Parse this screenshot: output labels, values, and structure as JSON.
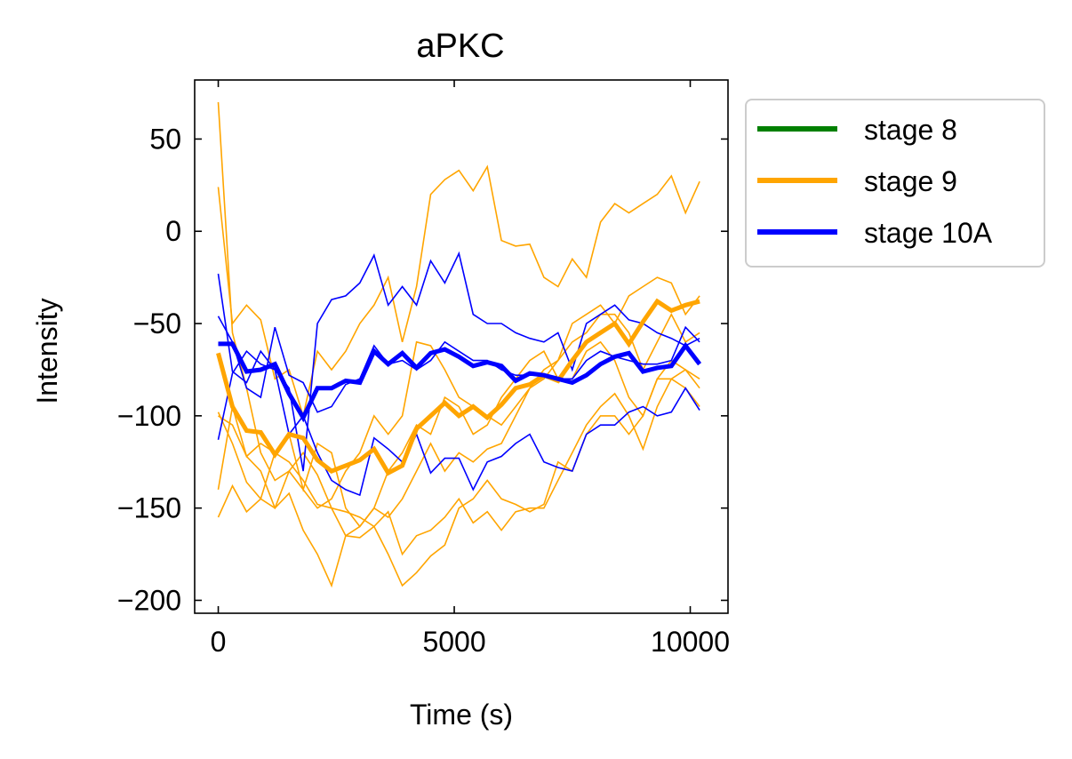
{
  "chart_data": {
    "type": "line",
    "title": "aPKC",
    "xlabel": "Time (s)",
    "ylabel": "Intensity",
    "xlim": [
      -500,
      10800
    ],
    "ylim": [
      -207,
      82
    ],
    "xticks": [
      0,
      5000,
      10000
    ],
    "xtick_labels": [
      "0",
      "5000",
      "10000"
    ],
    "yticks": [
      50,
      0,
      -50,
      -100,
      -150,
      -200
    ],
    "ytick_labels": [
      "50",
      "0",
      "−50",
      "−100",
      "−150",
      "−200"
    ],
    "grid": false,
    "legend_position": "outside-right-top",
    "legend": [
      {
        "label": "stage 8",
        "color": "#008000"
      },
      {
        "label": "stage 9",
        "color": "#FFA500"
      },
      {
        "label": "stage 10A",
        "color": "#0000FF"
      }
    ],
    "x": [
      0,
      300,
      600,
      900,
      1200,
      1500,
      1800,
      2100,
      2400,
      2700,
      3000,
      3300,
      3600,
      3900,
      4200,
      4500,
      4800,
      5100,
      5400,
      5700,
      6000,
      6300,
      6600,
      6900,
      7200,
      7500,
      7800,
      8100,
      8400,
      8700,
      9000,
      9300,
      9600,
      9900,
      10200
    ],
    "series": [
      {
        "group": "stage 9",
        "style": "individual",
        "color": "#FFA500",
        "values": [
          70,
          -55,
          -85,
          -120,
          -135,
          -130,
          -140,
          -150,
          -145,
          -130,
          -120,
          -100,
          -110,
          -100,
          -60,
          -62,
          -75,
          -90,
          -95,
          -100,
          -105,
          -95,
          -85,
          -75,
          -70,
          -50,
          -45,
          -40,
          -50,
          -35,
          -30,
          -25,
          -28,
          -45,
          -35
        ]
      },
      {
        "group": "stage 9",
        "style": "individual",
        "color": "#FFA500",
        "values": [
          24,
          -50,
          -40,
          -48,
          -80,
          -75,
          -100,
          -65,
          -75,
          -65,
          -50,
          -40,
          -25,
          -60,
          -30,
          20,
          28,
          33,
          22,
          35,
          -5,
          -8,
          -7,
          -25,
          -30,
          -15,
          -25,
          5,
          15,
          10,
          15,
          20,
          30,
          10,
          27
        ]
      },
      {
        "group": "stage 9",
        "style": "individual",
        "color": "#FFA500",
        "values": [
          -155,
          -138,
          -152,
          -145,
          -120,
          -110,
          -140,
          -115,
          -120,
          -150,
          -160,
          -150,
          -155,
          -145,
          -130,
          -115,
          -130,
          -120,
          -125,
          -118,
          -115,
          -100,
          -85,
          -80,
          -70,
          -60,
          -55,
          -45,
          -45,
          -55,
          -75,
          -60,
          -45,
          -60,
          -55
        ]
      },
      {
        "group": "stage 9",
        "style": "individual",
        "color": "#FFA500",
        "values": [
          -100,
          -105,
          -122,
          -130,
          -150,
          -142,
          -162,
          -175,
          -192,
          -165,
          -166,
          -160,
          -175,
          -192,
          -185,
          -176,
          -170,
          -150,
          -145,
          -135,
          -145,
          -148,
          -152,
          -148,
          -125,
          -130,
          -110,
          -100,
          -100,
          -110,
          -100,
          -80,
          -80,
          -85,
          -95
        ]
      },
      {
        "group": "stage 9",
        "style": "individual",
        "color": "#FFA500",
        "values": [
          -140,
          -95,
          -122,
          -115,
          -120,
          -125,
          -135,
          -148,
          -150,
          -165,
          -160,
          -150,
          -130,
          -120,
          -105,
          -110,
          -90,
          -95,
          -110,
          -105,
          -90,
          -80,
          -70,
          -65,
          -80,
          -80,
          -65,
          -60,
          -70,
          -90,
          -100,
          -80,
          -70,
          -75,
          -80
        ]
      },
      {
        "group": "stage 9",
        "style": "individual",
        "color": "#FFA500",
        "values": [
          -98,
          -115,
          -136,
          -145,
          -150,
          -130,
          -120,
          -132,
          -150,
          -152,
          -155,
          -160,
          -152,
          -175,
          -165,
          -162,
          -155,
          -145,
          -158,
          -152,
          -162,
          -152,
          -150,
          -150,
          -135,
          -120,
          -105,
          -95,
          -88,
          -100,
          -118,
          -95,
          -80,
          -75,
          -85
        ]
      },
      {
        "group": "stage 10A",
        "style": "individual",
        "color": "#0000FF",
        "values": [
          -23,
          -76,
          -82,
          -65,
          -75,
          -85,
          -130,
          -50,
          -37,
          -35,
          -28,
          -13,
          -40,
          -30,
          -40,
          -16,
          -28,
          -12,
          -45,
          -50,
          -50,
          -55,
          -58,
          -60,
          -55,
          -75,
          -50,
          -45,
          -40,
          -48,
          -50,
          -55,
          -58,
          -62,
          -58
        ]
      },
      {
        "group": "stage 10A",
        "style": "individual",
        "color": "#0000FF",
        "values": [
          -46,
          -60,
          -85,
          -90,
          -52,
          -78,
          -82,
          -98,
          -95,
          -83,
          -80,
          -62,
          -72,
          -70,
          -75,
          -70,
          -60,
          -65,
          -70,
          -70,
          -75,
          -78,
          -78,
          -78,
          -80,
          -80,
          -70,
          -65,
          -68,
          -70,
          -72,
          -72,
          -70,
          -52,
          -60
        ]
      },
      {
        "group": "stage 10A",
        "style": "individual",
        "color": "#0000FF",
        "values": [
          -113,
          -77,
          -65,
          -72,
          -75,
          -110,
          -100,
          -120,
          -135,
          -140,
          -143,
          -112,
          -118,
          -125,
          -110,
          -131,
          -123,
          -123,
          -140,
          -125,
          -122,
          -115,
          -110,
          -125,
          -128,
          -130,
          -110,
          -105,
          -105,
          -98,
          -95,
          -100,
          -98,
          -85,
          -97
        ]
      },
      {
        "group": "stage 9",
        "style": "mean",
        "color": "#FFA500",
        "values": [
          -66,
          -95,
          -108,
          -109,
          -121,
          -110,
          -112,
          -124,
          -130,
          -127,
          -124,
          -118,
          -131,
          -127,
          -107,
          -100,
          -93,
          -100,
          -95,
          -101,
          -94,
          -85,
          -83,
          -78,
          -81,
          -70,
          -60,
          -55,
          -50,
          -61,
          -49,
          -38,
          -43,
          -40,
          -38
        ]
      },
      {
        "group": "stage 10A",
        "style": "mean",
        "color": "#0000FF",
        "values": [
          -61,
          -61,
          -76,
          -75,
          -72,
          -88,
          -101,
          -85,
          -85,
          -81,
          -82,
          -65,
          -72,
          -66,
          -74,
          -66,
          -64,
          -68,
          -73,
          -71,
          -73,
          -81,
          -77,
          -78,
          -80,
          -82,
          -78,
          -72,
          -68,
          -66,
          -76,
          -74,
          -73,
          -62,
          -72
        ]
      }
    ]
  }
}
